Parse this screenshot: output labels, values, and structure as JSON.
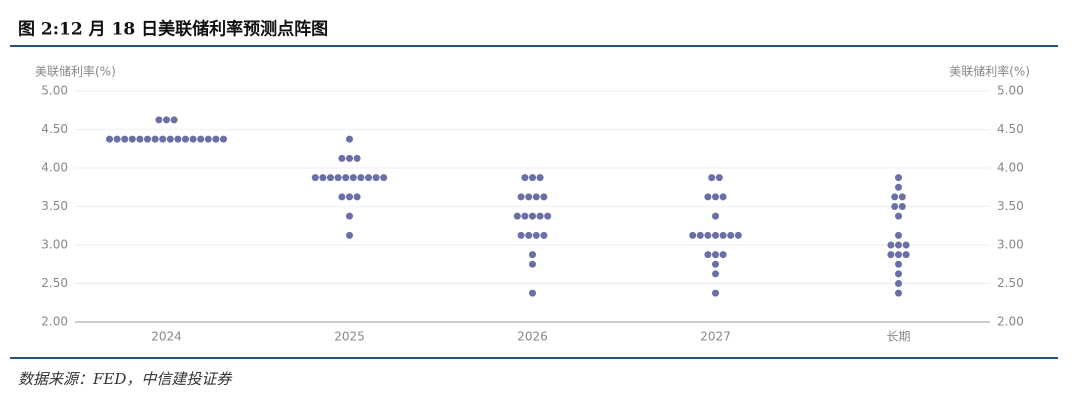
{
  "chart_data": {
    "type": "dot",
    "title": "图 2:12 月 18 日美联储利率预测点阵图",
    "y_label": "美联储利率(%)",
    "y2_label": "美联储利率(%)",
    "source": "数据来源：FED，中信建投证券",
    "categories": [
      "2024",
      "2025",
      "2026",
      "2027",
      "长期"
    ],
    "color": "#6b6fa8",
    "values": [
      [
        4.625,
        4.625,
        4.625,
        4.375,
        4.375,
        4.375,
        4.375,
        4.375,
        4.375,
        4.375,
        4.375,
        4.375,
        4.375,
        4.375,
        4.375,
        4.375,
        4.375,
        4.375,
        4.375
      ],
      [
        4.375,
        4.125,
        4.125,
        4.125,
        3.875,
        3.875,
        3.875,
        3.875,
        3.875,
        3.875,
        3.875,
        3.875,
        3.875,
        3.875,
        3.625,
        3.625,
        3.625,
        3.375,
        3.125
      ],
      [
        3.875,
        3.875,
        3.875,
        3.625,
        3.625,
        3.625,
        3.625,
        3.375,
        3.375,
        3.375,
        3.375,
        3.375,
        3.125,
        3.125,
        3.125,
        3.125,
        2.875,
        2.75,
        2.375
      ],
      [
        3.875,
        3.875,
        3.625,
        3.625,
        3.625,
        3.375,
        3.125,
        3.125,
        3.125,
        3.125,
        3.125,
        3.125,
        3.125,
        2.875,
        2.875,
        2.875,
        2.75,
        2.625,
        2.375
      ],
      [
        3.875,
        3.75,
        3.625,
        3.625,
        3.5,
        3.5,
        3.375,
        3.125,
        3.0,
        3.0,
        3.0,
        2.875,
        2.875,
        2.875,
        2.75,
        2.625,
        2.5,
        2.375
      ]
    ],
    "ylim": [
      2,
      5
    ],
    "yticks": [
      {
        "value": 2,
        "label": "2.00"
      },
      {
        "value": 2.5,
        "label": "2.50"
      },
      {
        "value": 3,
        "label": "3.00"
      },
      {
        "value": 3.5,
        "label": "3.50"
      },
      {
        "value": 4,
        "label": "4.00"
      },
      {
        "value": 4.5,
        "label": "4.50"
      },
      {
        "value": 5,
        "label": "5.00"
      }
    ],
    "y2lim": [
      2,
      5
    ],
    "y2ticks": [
      {
        "value": 2,
        "label": "2.00"
      },
      {
        "value": 2.5,
        "label": "2.50"
      },
      {
        "value": 3,
        "label": "3.00"
      },
      {
        "value": 3.5,
        "label": "3.50"
      },
      {
        "value": 4,
        "label": "4.00"
      },
      {
        "value": 4.5,
        "label": "4.50"
      },
      {
        "value": 5,
        "label": "5.00"
      }
    ],
    "grid": true
  }
}
